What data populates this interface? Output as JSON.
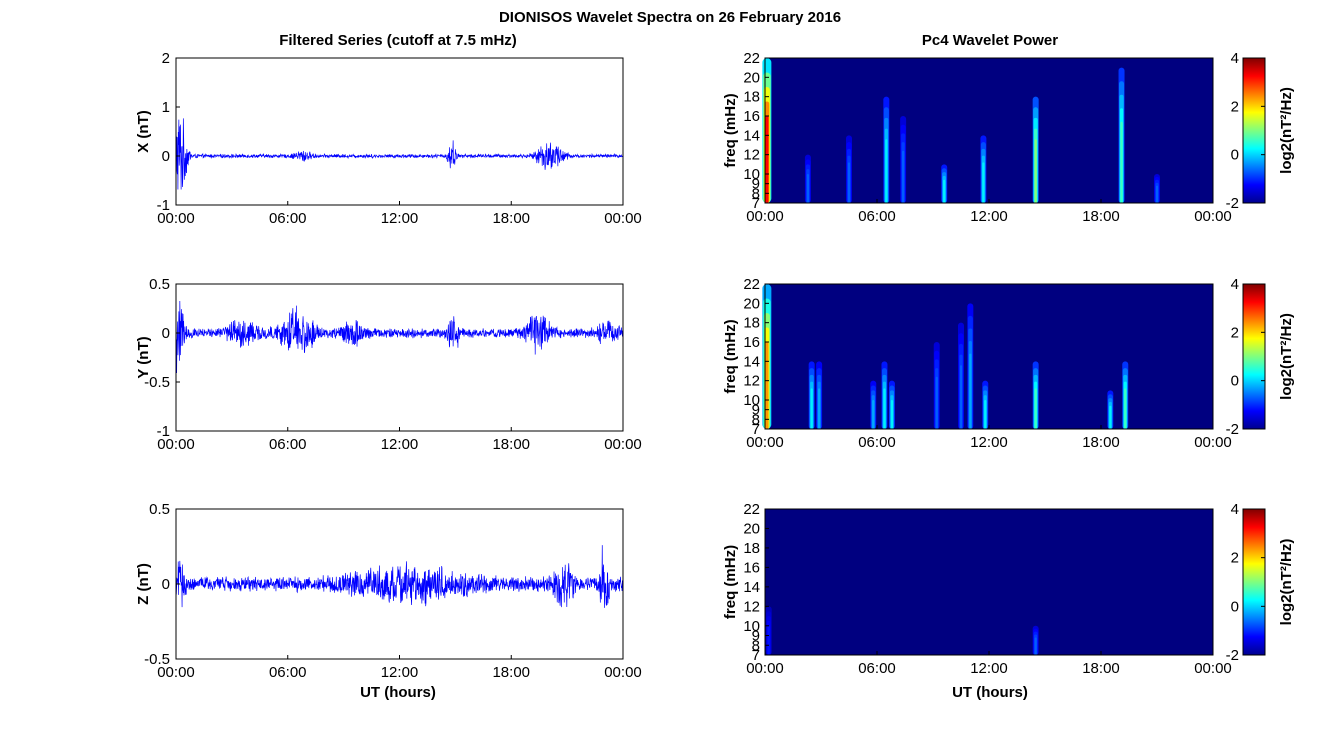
{
  "figure": {
    "title": "DIONISOS Wavelet Spectra on 26 February 2016",
    "left_title": "Filtered Series (cutoff at 7.5 mHz)",
    "right_title": "Pc4 Wavelet Power",
    "xlabel": "UT (hours)"
  },
  "colors": {
    "trace": "#0000ff",
    "axis": "#000000",
    "background": "#00008f"
  },
  "chart_data": [
    {
      "type": "line",
      "name": "X filtered series",
      "ylabel": "X (nT)",
      "x_ticks": [
        "00:00",
        "06:00",
        "12:00",
        "18:00",
        "00:00"
      ],
      "xlim_hours": [
        0,
        24
      ],
      "ylim": [
        -1,
        2
      ],
      "y_ticks": [
        "-1",
        "0",
        "1",
        "2"
      ],
      "y_tick_values": [
        -1,
        0,
        1,
        2
      ],
      "baseline_amplitude": 0.04,
      "bursts": [
        {
          "t": 0.15,
          "amp": 1.0,
          "w": 0.4
        },
        {
          "t": 6.8,
          "amp": 0.12,
          "w": 0.4
        },
        {
          "t": 14.8,
          "amp": 0.35,
          "w": 0.2
        },
        {
          "t": 19.8,
          "amp": 0.3,
          "w": 0.4
        },
        {
          "t": 20.5,
          "amp": 0.25,
          "w": 0.4
        }
      ]
    },
    {
      "type": "line",
      "name": "Y filtered series",
      "ylabel": "Y (nT)",
      "x_ticks": [
        "00:00",
        "06:00",
        "12:00",
        "18:00",
        "00:00"
      ],
      "xlim_hours": [
        0,
        24
      ],
      "ylim": [
        -1,
        0.5
      ],
      "y_ticks": [
        "-1",
        "-0.5",
        "0",
        "0.5"
      ],
      "y_tick_values": [
        -1,
        -0.5,
        0,
        0.5
      ],
      "baseline_amplitude": 0.05,
      "bursts": [
        {
          "t": 0.1,
          "amp": 0.5,
          "w": 0.3
        },
        {
          "t": 3.5,
          "amp": 0.15,
          "w": 0.7
        },
        {
          "t": 6.5,
          "amp": 0.22,
          "w": 0.9
        },
        {
          "t": 9.5,
          "amp": 0.12,
          "w": 0.6
        },
        {
          "t": 14.9,
          "amp": 0.18,
          "w": 0.3
        },
        {
          "t": 19.5,
          "amp": 0.2,
          "w": 0.6
        },
        {
          "t": 23.2,
          "amp": 0.12,
          "w": 0.5
        }
      ]
    },
    {
      "type": "line",
      "name": "Z filtered series",
      "ylabel": "Z (nT)",
      "x_ticks": [
        "00:00",
        "06:00",
        "12:00",
        "18:00",
        "00:00"
      ],
      "xlim_hours": [
        0,
        24
      ],
      "ylim": [
        -0.5,
        0.5
      ],
      "y_ticks": [
        "-0.5",
        "0",
        "0.5"
      ],
      "y_tick_values": [
        -0.5,
        0,
        0.5
      ],
      "baseline_amplitude": 0.05,
      "bursts": [
        {
          "t": 0.1,
          "amp": 0.18,
          "w": 0.3
        },
        {
          "t": 12.5,
          "amp": 0.1,
          "w": 3.0
        },
        {
          "t": 20.8,
          "amp": 0.15,
          "w": 0.5
        },
        {
          "t": 23.0,
          "amp": 0.3,
          "w": 0.2
        }
      ]
    },
    {
      "type": "heatmap",
      "name": "X Pc4 wavelet power",
      "ylabel": "freq (mHz)",
      "x_ticks": [
        "00:00",
        "06:00",
        "12:00",
        "18:00",
        "00:00"
      ],
      "xlim_hours": [
        0,
        24
      ],
      "ylim_mhz": [
        7,
        22
      ],
      "y_ticks": [
        "7",
        "8",
        "9",
        "10",
        "12",
        "14",
        "16",
        "18",
        "20",
        "22"
      ],
      "y_tick_values": [
        7,
        8,
        9,
        10,
        12,
        14,
        16,
        18,
        20,
        22
      ],
      "colorbar_label": "log2(nT²/Hz)",
      "colorbar_ticks": [
        "4",
        "2",
        "0",
        "-2"
      ],
      "clim": [
        -2,
        4
      ],
      "background_power": -2,
      "features": [
        {
          "t": 0.1,
          "power": 4,
          "f_top": 22
        },
        {
          "t": 2.3,
          "power": -0.5,
          "f_top": 12
        },
        {
          "t": 4.5,
          "power": -0.5,
          "f_top": 14
        },
        {
          "t": 6.5,
          "power": 0.5,
          "f_top": 18
        },
        {
          "t": 7.4,
          "power": -0.5,
          "f_top": 16
        },
        {
          "t": 9.6,
          "power": 0.5,
          "f_top": 11
        },
        {
          "t": 11.7,
          "power": 0.5,
          "f_top": 14
        },
        {
          "t": 14.5,
          "power": 1.5,
          "f_top": 18
        },
        {
          "t": 19.1,
          "power": 1,
          "f_top": 21
        },
        {
          "t": 21.0,
          "power": -0.5,
          "f_top": 10
        }
      ]
    },
    {
      "type": "heatmap",
      "name": "Y Pc4 wavelet power",
      "ylabel": "freq (mHz)",
      "x_ticks": [
        "00:00",
        "06:00",
        "12:00",
        "18:00",
        "00:00"
      ],
      "xlim_hours": [
        0,
        24
      ],
      "ylim_mhz": [
        7,
        22
      ],
      "y_ticks": [
        "7",
        "8",
        "9",
        "10",
        "12",
        "14",
        "16",
        "18",
        "20",
        "22"
      ],
      "y_tick_values": [
        7,
        8,
        9,
        10,
        12,
        14,
        16,
        18,
        20,
        22
      ],
      "colorbar_label": "log2(nT²/Hz)",
      "colorbar_ticks": [
        "4",
        "2",
        "0",
        "-2"
      ],
      "clim": [
        -2,
        4
      ],
      "background_power": -2,
      "features": [
        {
          "t": 0.1,
          "power": 3,
          "f_top": 22
        },
        {
          "t": 2.5,
          "power": 0.5,
          "f_top": 14
        },
        {
          "t": 2.9,
          "power": 0,
          "f_top": 14
        },
        {
          "t": 5.8,
          "power": 0,
          "f_top": 12
        },
        {
          "t": 6.4,
          "power": 0.5,
          "f_top": 14
        },
        {
          "t": 6.8,
          "power": 0.5,
          "f_top": 12
        },
        {
          "t": 9.2,
          "power": -0.5,
          "f_top": 16
        },
        {
          "t": 10.5,
          "power": -0.5,
          "f_top": 18
        },
        {
          "t": 11.0,
          "power": 0,
          "f_top": 20
        },
        {
          "t": 11.8,
          "power": 0.5,
          "f_top": 12
        },
        {
          "t": 14.5,
          "power": 1,
          "f_top": 14
        },
        {
          "t": 18.5,
          "power": 0.5,
          "f_top": 11
        },
        {
          "t": 19.3,
          "power": 1,
          "f_top": 14
        }
      ]
    },
    {
      "type": "heatmap",
      "name": "Z Pc4 wavelet power",
      "ylabel": "freq (mHz)",
      "x_ticks": [
        "00:00",
        "06:00",
        "12:00",
        "18:00",
        "00:00"
      ],
      "xlim_hours": [
        0,
        24
      ],
      "ylim_mhz": [
        7,
        22
      ],
      "y_ticks": [
        "7",
        "8",
        "9",
        "10",
        "12",
        "14",
        "16",
        "18",
        "20",
        "22"
      ],
      "y_tick_values": [
        7,
        8,
        9,
        10,
        12,
        14,
        16,
        18,
        20,
        22
      ],
      "colorbar_label": "log2(nT²/Hz)",
      "colorbar_ticks": [
        "4",
        "2",
        "0",
        "-2"
      ],
      "clim": [
        -2,
        4
      ],
      "background_power": -2,
      "features": [
        {
          "t": 0.2,
          "power": -1,
          "f_top": 12
        },
        {
          "t": 14.5,
          "power": -0.5,
          "f_top": 10
        }
      ]
    }
  ]
}
